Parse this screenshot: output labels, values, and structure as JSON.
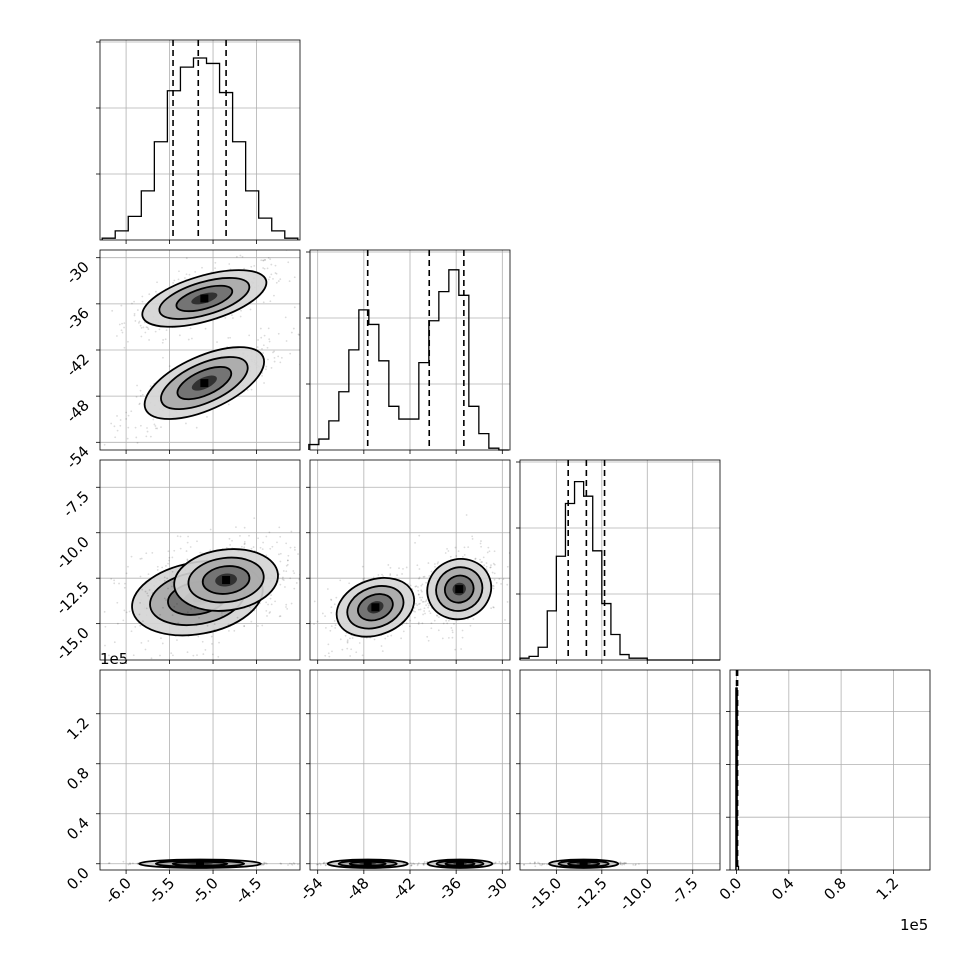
{
  "chart_data": [
    {
      "type": "histogram",
      "panel": "1-1",
      "x_ticks": [
        "-6.0",
        "-5.5",
        "-5.0",
        "-4.5"
      ],
      "xlim": [
        -6.3,
        -4.0
      ],
      "bins_x": [
        -6.2,
        -6.05,
        -5.9,
        -5.75,
        -5.6,
        -5.45,
        -5.3,
        -5.15,
        -5.0,
        -4.85,
        -4.7,
        -4.55,
        -4.4,
        -4.25,
        -4.1
      ],
      "counts": [
        0.01,
        0.05,
        0.13,
        0.27,
        0.54,
        0.82,
        0.95,
        1.0,
        0.97,
        0.81,
        0.54,
        0.27,
        0.12,
        0.05,
        0.01
      ],
      "quantiles": [
        -5.46,
        -5.17,
        -4.85
      ],
      "grid": true
    },
    {
      "type": "histogram",
      "panel": "2-2",
      "x_ticks": [
        "-54",
        "-48",
        "-42",
        "-36",
        "-30"
      ],
      "xlim": [
        -55,
        -29
      ],
      "bins_x": [
        -54.5,
        -53.2,
        -51.9,
        -50.6,
        -49.3,
        -48.0,
        -46.7,
        -45.4,
        -44.1,
        -42.8,
        -41.5,
        -40.2,
        -38.9,
        -37.6,
        -36.3,
        -35.0,
        -33.7,
        -32.4,
        -31.1,
        -29.8
      ],
      "counts": [
        0.03,
        0.06,
        0.16,
        0.32,
        0.55,
        0.77,
        0.69,
        0.49,
        0.24,
        0.17,
        0.17,
        0.48,
        0.71,
        0.87,
        0.99,
        0.85,
        0.24,
        0.09,
        0.01,
        0.0
      ],
      "quantiles": [
        -47.5,
        -39.5,
        -35.0
      ],
      "grid": true
    },
    {
      "type": "histogram",
      "panel": "3-3",
      "x_ticks": [
        "-15.0",
        "-12.5",
        "-10.0",
        "-7.5"
      ],
      "xlim": [
        -17.0,
        -6.0
      ],
      "bins_x": [
        -16.75,
        -16.25,
        -15.75,
        -15.25,
        -14.75,
        -14.25,
        -13.75,
        -13.25,
        -12.75,
        -12.25,
        -11.75,
        -11.25,
        -10.75,
        -10.25,
        -9.75,
        -9.25,
        -8.75,
        -8.25,
        -7.75,
        -7.25,
        -6.75,
        -6.25
      ],
      "counts": [
        0.01,
        0.02,
        0.07,
        0.27,
        0.57,
        0.86,
        0.98,
        0.9,
        0.6,
        0.31,
        0.14,
        0.03,
        0.01,
        0.01,
        0.0,
        0.0,
        0.0,
        0.0,
        0.0,
        0.0,
        0.0,
        0.0
      ],
      "quantiles": [
        -14.35,
        -13.35,
        -12.35
      ],
      "grid": true
    },
    {
      "type": "histogram",
      "panel": "4-4",
      "x_ticks": [
        "0.0",
        "0.4",
        "0.8",
        "1.2"
      ],
      "x_multiplier": "1e5",
      "xlim": [
        -0.05,
        1.48
      ],
      "bins_x": [
        0.0,
        0.01
      ],
      "counts": [
        1.0,
        0.02
      ],
      "quantiles": [
        0.0,
        0.003,
        0.008
      ],
      "grid": true
    },
    {
      "type": "scatter-density",
      "panel": "2-1",
      "xlim": [
        -6.3,
        -4.0
      ],
      "ylim": [
        -55,
        -29
      ],
      "y_ticks": [
        "-30",
        "-36",
        "-42",
        "-48",
        "-54"
      ],
      "clusters": [
        {
          "center": [
            -5.1,
            -35.3
          ],
          "sx": 0.37,
          "sy": 1.9,
          "rho": 0.65
        },
        {
          "center": [
            -5.1,
            -46.3
          ],
          "sx": 0.37,
          "sy": 2.4,
          "rho": 0.78
        }
      ],
      "grid": true
    },
    {
      "type": "scatter-density",
      "panel": "3-1",
      "xlim": [
        -6.3,
        -4.0
      ],
      "ylim": [
        -17.0,
        -6.0
      ],
      "y_ticks": [
        "-7.5",
        "-10.0",
        "-12.5",
        "-15.0"
      ],
      "clusters": [
        {
          "center": [
            -5.18,
            -13.6
          ],
          "sx": 0.38,
          "sy": 1.1,
          "rho": 0.3
        },
        {
          "center": [
            -4.85,
            -12.6
          ],
          "sx": 0.3,
          "sy": 0.9,
          "rho": 0.2
        }
      ],
      "grid": true
    },
    {
      "type": "scatter-density",
      "panel": "3-2",
      "xlim": [
        -55,
        -29
      ],
      "ylim": [
        -17.0,
        -6.0
      ],
      "clusters": [
        {
          "center": [
            -46.5,
            -14.1
          ],
          "sx": 2.6,
          "sy": 0.9,
          "rho": 0.45
        },
        {
          "center": [
            -35.6,
            -13.1
          ],
          "sx": 2.1,
          "sy": 0.95,
          "rho": 0.4
        }
      ],
      "grid": true
    },
    {
      "type": "scatter-density",
      "panel": "4-1",
      "xlim": [
        -6.3,
        -4.0
      ],
      "ylim": [
        -0.05,
        1.55
      ],
      "y_ticks": [
        "0.0",
        "0.4",
        "0.8",
        "1.2"
      ],
      "y_multiplier": "1e5",
      "clusters": [
        {
          "center": [
            -5.15,
            0.0
          ],
          "sx": 0.35,
          "sy": 0.006,
          "rho": 0.0
        }
      ],
      "grid": true
    },
    {
      "type": "scatter-density",
      "panel": "4-2",
      "xlim": [
        -55,
        -29
      ],
      "ylim": [
        -0.05,
        1.55
      ],
      "clusters": [
        {
          "center": [
            -47.5,
            0.0
          ],
          "sx": 2.6,
          "sy": 0.006,
          "rho": 0.0
        },
        {
          "center": [
            -35.5,
            0.0
          ],
          "sx": 2.1,
          "sy": 0.006,
          "rho": 0.0
        }
      ],
      "grid": true
    },
    {
      "type": "scatter-density",
      "panel": "4-3",
      "xlim": [
        -17.0,
        -6.0
      ],
      "ylim": [
        -0.05,
        1.55
      ],
      "clusters": [
        {
          "center": [
            -13.5,
            0.0
          ],
          "sx": 0.95,
          "sy": 0.006,
          "rho": 0.0
        }
      ],
      "grid": true
    }
  ]
}
